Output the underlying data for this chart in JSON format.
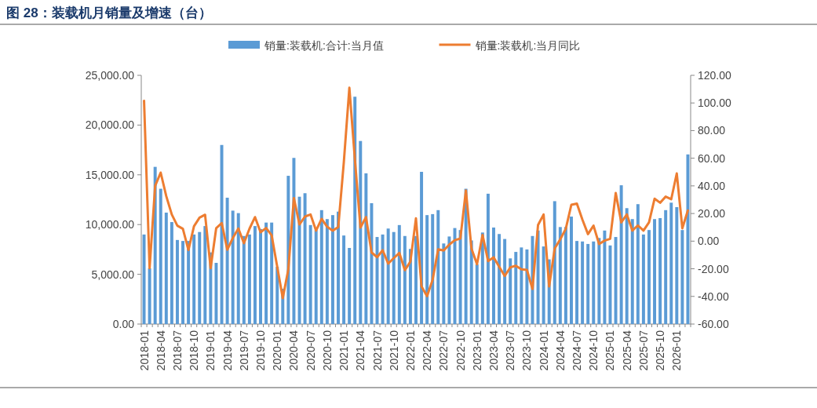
{
  "chart_data": {
    "type": "bar",
    "title": "图 28：装载机月销量及增速（台）",
    "categories": [
      "2018-01",
      null,
      null,
      "2018-04",
      null,
      null,
      "2018-07",
      null,
      null,
      "2018-10",
      null,
      null,
      "2019-01",
      null,
      null,
      "2019-04",
      null,
      null,
      "2019-07",
      null,
      null,
      "2019-10",
      null,
      null,
      "2020-01",
      null,
      null,
      "2020-04",
      null,
      null,
      "2020-07",
      null,
      null,
      "2020-10",
      null,
      null,
      "2021-01",
      null,
      null,
      "2021-04",
      null,
      null,
      "2021-07",
      null,
      null,
      "2021-10",
      null,
      null,
      "2022-01",
      null,
      null,
      "2022-04",
      null,
      null,
      "2022-07",
      null,
      null,
      "2022-10",
      null,
      null,
      "2023-01",
      null,
      null,
      "2023-04",
      null,
      null,
      "2023-07",
      null,
      null,
      "2023-10",
      null,
      null,
      "2024-01",
      null,
      null,
      "2024-04",
      null,
      null,
      "2024-07",
      null,
      null,
      "2024-10",
      null,
      null,
      "2025-01",
      null,
      null,
      "2025-04",
      null,
      null,
      "2025-07",
      null,
      null,
      "2025-10",
      null,
      null,
      "2026-01",
      null,
      null
    ],
    "series": [
      {
        "name": "销量:装载机:合计:当月值",
        "color": "#5b9bd5",
        "values": [
          9000,
          5600,
          15800,
          13600,
          11200,
          10250,
          8450,
          8350,
          8350,
          9000,
          9250,
          9850,
          7200,
          6150,
          18000,
          12700,
          11400,
          11150,
          8850,
          9000,
          9850,
          9550,
          10200,
          10200,
          5750,
          3550,
          14900,
          16700,
          12800,
          13150,
          9950,
          9450,
          11450,
          10550,
          10950,
          11300,
          8900,
          7650,
          22850,
          18400,
          15150,
          12150,
          8750,
          9000,
          9600,
          9250,
          9950,
          8850,
          7550,
          8850,
          15300,
          10950,
          11050,
          11450,
          8100,
          8800,
          9650,
          9450,
          13600,
          8400,
          6000,
          9200,
          13100,
          9700,
          9050,
          8550,
          6600,
          7250,
          7700,
          7500,
          8850,
          9400,
          7800,
          6500,
          12350,
          9750,
          9750,
          10800,
          8350,
          8300,
          8050,
          8300,
          8650,
          9400,
          7900,
          8750,
          13950,
          11650,
          10550,
          12050,
          9000,
          9450,
          10550,
          10650,
          11450,
          12200,
          11750,
          9450,
          17050
        ]
      },
      {
        "name": "销量:装载机:当月同比",
        "type": "line",
        "axis": "y2",
        "color": "#ed7d31",
        "values": [
          101.6,
          -19.5,
          40,
          49.6,
          32.6,
          19.3,
          11.2,
          8.9,
          -6.4,
          10.8,
          17,
          19.1,
          -19.5,
          9.3,
          13.1,
          -6.2,
          2.3,
          9.1,
          -1.5,
          9,
          17.4,
          6.4,
          9.5,
          4.2,
          -18.6,
          -41.3,
          -20.4,
          31.2,
          12.1,
          17.8,
          19.3,
          7.6,
          16.1,
          10.4,
          7.6,
          10.2,
          57,
          111,
          59,
          9.8,
          17.4,
          -8.2,
          -11.6,
          -6.6,
          -16.3,
          -12.3,
          -8.5,
          -21,
          -14.8,
          16.5,
          -32.8,
          -39.8,
          -28,
          -5.9,
          -6.8,
          -2.5,
          0.7,
          1.9,
          36.7,
          -5.3,
          -16.7,
          4.5,
          -14.4,
          -11.7,
          -18.6,
          -25.2,
          -19,
          -17.8,
          -20.4,
          -20.8,
          -34.6,
          11.7,
          19.3,
          -32.8,
          -5.3,
          1.3,
          8.9,
          26.3,
          27.2,
          15.5,
          5.1,
          11.2,
          -2.1,
          0.4,
          1.7,
          34.8,
          13.6,
          19.3,
          7.6,
          11.4,
          7.6,
          13.6,
          30.7,
          27.8,
          32.2,
          30.3,
          49,
          9.3,
          22.2
        ]
      }
    ],
    "ylim": [
      0,
      25000
    ],
    "yticks": [
      {
        "value": 0,
        "label": "0.00"
      },
      {
        "value": 5000,
        "label": "5,000.00"
      },
      {
        "value": 10000,
        "label": "10,000.00"
      },
      {
        "value": 15000,
        "label": "15,000.00"
      },
      {
        "value": 20000,
        "label": "20,000.00"
      },
      {
        "value": 25000,
        "label": "25,000.00"
      }
    ],
    "y2lim": [
      -60,
      120
    ],
    "y2ticks": [
      {
        "value": -60,
        "label": "-60.00"
      },
      {
        "value": -40,
        "label": "-40.00"
      },
      {
        "value": -20,
        "label": "-20.00"
      },
      {
        "value": 0,
        "label": "0.00"
      },
      {
        "value": 20,
        "label": "20.00"
      },
      {
        "value": 40,
        "label": "40.00"
      },
      {
        "value": 60,
        "label": "60.00"
      },
      {
        "value": 80,
        "label": "80.00"
      },
      {
        "value": 100,
        "label": "100.00"
      },
      {
        "value": 120,
        "label": "120.00"
      }
    ],
    "legend": "top"
  }
}
